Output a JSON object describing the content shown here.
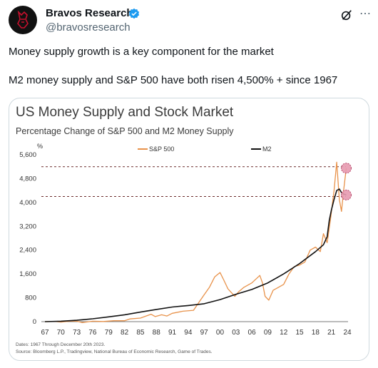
{
  "author": {
    "name": "Bravos Research",
    "handle": "@bravosresearch",
    "verified_color": "#1d9bf0"
  },
  "tweet": {
    "line1": "Money supply growth is a key component for the market",
    "line2": "M2 money supply and S&P 500 have both risen 4,500% + since 1967"
  },
  "icons": {
    "more": "⋯"
  },
  "chart_data": {
    "type": "line",
    "title": "US Money Supply and Stock Market",
    "subtitle": "Percentage Change of S&P 500 and M2 Money Supply",
    "ylabel": "%",
    "ylim": [
      0,
      5600
    ],
    "yticks": [
      0,
      800,
      1600,
      2400,
      3200,
      4000,
      4800,
      5600
    ],
    "ytick_labels": [
      "0",
      "800",
      "1,600",
      "2,400",
      "3,200",
      "4,000",
      "4,800",
      "5,600"
    ],
    "xlim": [
      1967,
      2024
    ],
    "xticks": [
      1967,
      1970,
      1973,
      1976,
      1979,
      1982,
      1985,
      1988,
      1991,
      1994,
      1997,
      2000,
      2003,
      2006,
      2009,
      2012,
      2015,
      2018,
      2021,
      2024
    ],
    "xtick_labels": [
      "67",
      "70",
      "73",
      "76",
      "79",
      "82",
      "85",
      "88",
      "91",
      "94",
      "97",
      "00",
      "03",
      "06",
      "09",
      "12",
      "15",
      "18",
      "21",
      "24"
    ],
    "grid": false,
    "legend_position": "top",
    "reference_lines": [
      5200,
      4200
    ],
    "highlights": [
      {
        "x": 2023.8,
        "y": 5150
      },
      {
        "x": 2023.8,
        "y": 4250
      }
    ],
    "series": [
      {
        "name": "S&P 500",
        "color": "#e8924a",
        "x": [
          1967,
          1969,
          1970,
          1972,
          1973,
          1974,
          1976,
          1978,
          1980,
          1982,
          1983,
          1985,
          1987,
          1987.8,
          1989,
          1990,
          1991,
          1993,
          1995,
          1996,
          1997,
          1998,
          1999,
          2000,
          2000.7,
          2001.5,
          2002,
          2002.8,
          2003.5,
          2004.5,
          2006,
          2007.5,
          2008,
          2008.5,
          2009.2,
          2010,
          2011,
          2012,
          2013,
          2014,
          2015,
          2016,
          2017,
          2018,
          2018.9,
          2019.5,
          2020.2,
          2020.8,
          2021.5,
          2022,
          2022.5,
          2022.9,
          2023.3,
          2023.8
        ],
        "values": [
          0,
          8,
          -15,
          20,
          15,
          -30,
          15,
          5,
          30,
          30,
          90,
          120,
          250,
          170,
          230,
          190,
          280,
          350,
          380,
          640,
          900,
          1150,
          1500,
          1650,
          1400,
          1100,
          1000,
          850,
          1000,
          1150,
          1300,
          1550,
          1300,
          850,
          720,
          1050,
          1150,
          1250,
          1600,
          1850,
          1900,
          2000,
          2400,
          2500,
          2350,
          2950,
          2650,
          3400,
          4400,
          5350,
          4100,
          3700,
          4400,
          5150
        ]
      },
      {
        "name": "M2",
        "color": "#111111",
        "x": [
          1967,
          1970,
          1973,
          1976,
          1979,
          1982,
          1985,
          1988,
          1991,
          1994,
          1997,
          2000,
          2003,
          2006,
          2009,
          2012,
          2015,
          2018,
          2019.5,
          2020.2,
          2020.6,
          2021,
          2021.5,
          2022,
          2022.5,
          2023,
          2023.8
        ],
        "values": [
          0,
          15,
          45,
          95,
          160,
          230,
          320,
          410,
          490,
          540,
          600,
          740,
          920,
          1080,
          1300,
          1600,
          1950,
          2350,
          2580,
          2850,
          3400,
          3750,
          4100,
          4400,
          4450,
          4300,
          4250
        ]
      }
    ],
    "footnote_dates": "Dates: 1967 Through December 20th 2023.",
    "footnote_source": "Source: Bloomberg L.P., Tradingview, National Bureau of Economic Research, Game of Trades."
  }
}
